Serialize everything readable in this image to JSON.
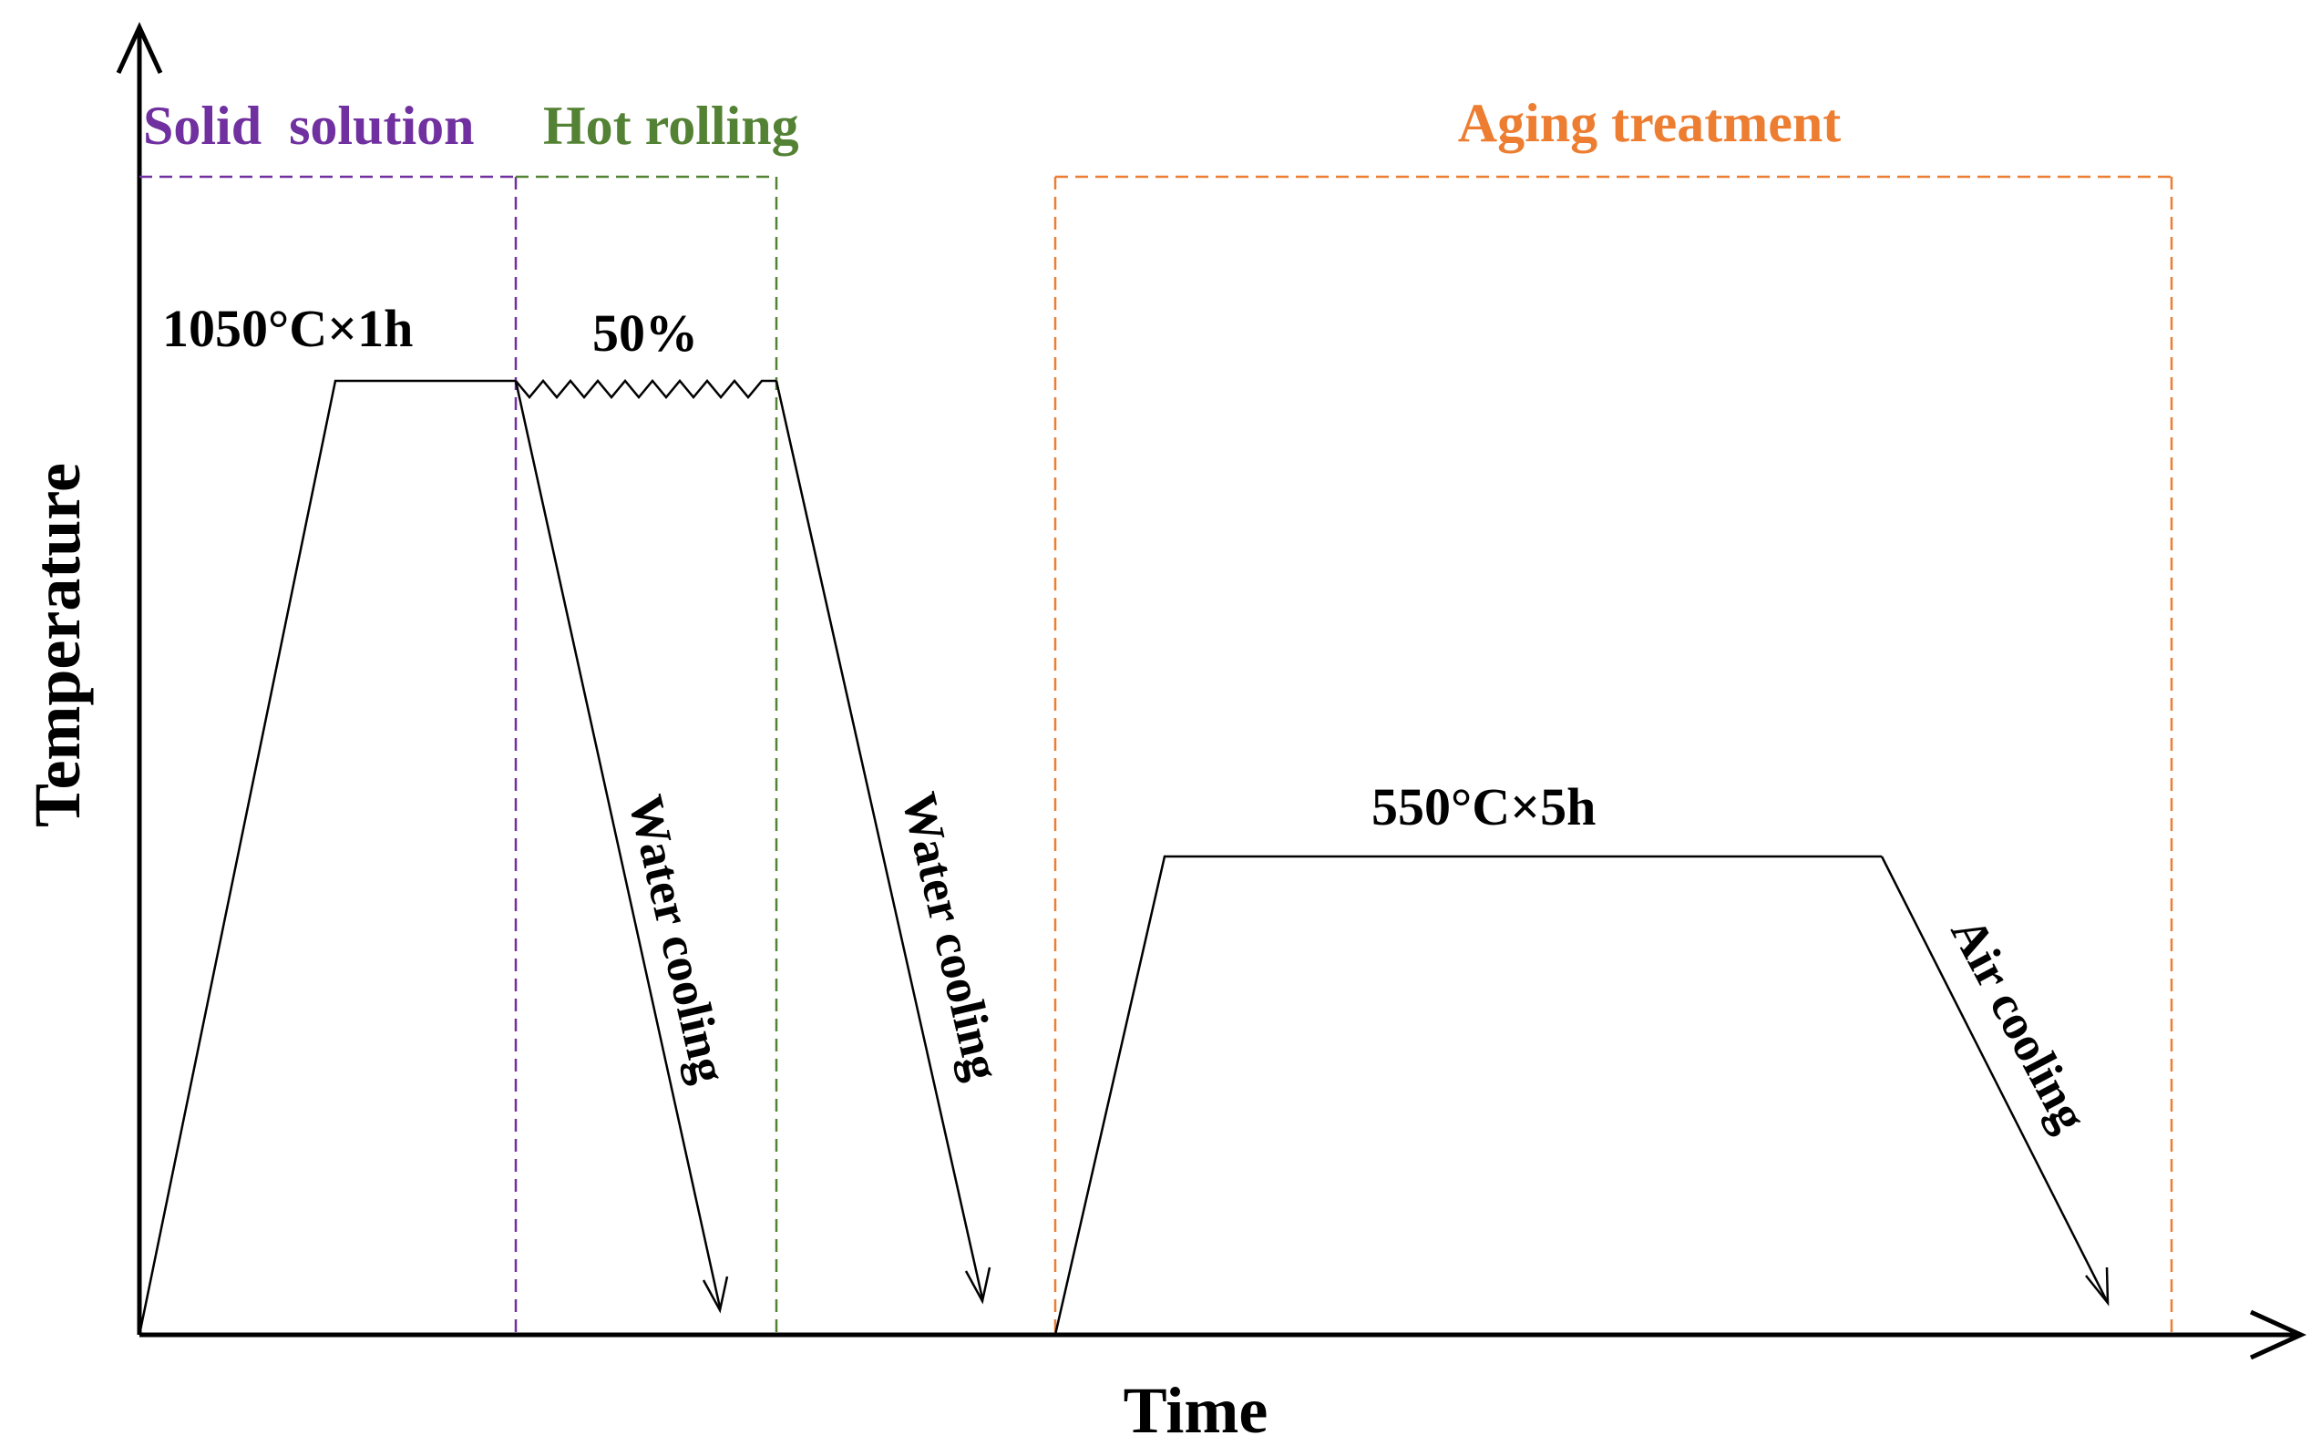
{
  "diagram": {
    "axes": {
      "x_label": "Time",
      "y_label": "Temperature"
    },
    "stages": {
      "solid_solution": {
        "title": "Solid  solution",
        "color": "#7030A0"
      },
      "hot_rolling": {
        "title": "Hot rolling",
        "color": "#548235"
      },
      "aging": {
        "title": "Aging treatment",
        "color": "#ED7D31"
      }
    },
    "annotations": {
      "solution_hold": "1050°C×1h",
      "rolling_reduction": "50%",
      "aging_hold": "550°C×5h",
      "cooling_1": "Water cooling",
      "cooling_2": "Water cooling",
      "cooling_3": "Air cooling"
    },
    "colors": {
      "line": "#000000"
    }
  }
}
